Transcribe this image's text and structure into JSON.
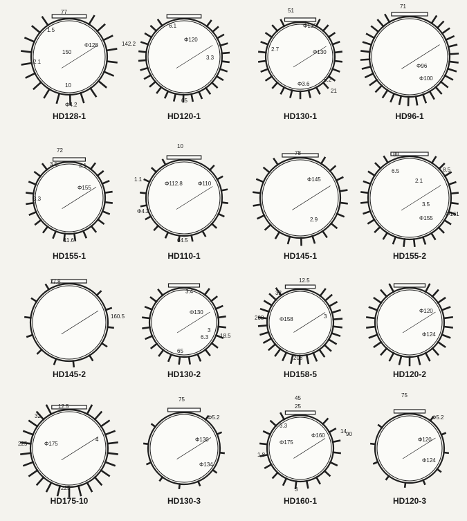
{
  "profiles": [
    {
      "name": "HD128-1",
      "dims": [
        "77",
        "1.5",
        "150",
        "Φ128",
        "142.2",
        "2.1",
        "10",
        "Φ4.2"
      ]
    },
    {
      "name": "HD120-1",
      "dims": [
        "6.1",
        "Φ120",
        "3.3",
        "65"
      ]
    },
    {
      "name": "HD130-1",
      "dims": [
        "51",
        "Φ135",
        "2.7",
        "Φ130",
        "Φ3.6",
        "6.2",
        "21"
      ]
    },
    {
      "name": "HD96-1",
      "dims": [
        "71",
        "Φ96",
        "Φ100"
      ]
    },
    {
      "name": "HD155-1",
      "dims": [
        "72",
        "3.5",
        "2.1",
        "Φ155",
        "3.3",
        "11.6"
      ]
    },
    {
      "name": "HD110-1",
      "dims": [
        "10",
        "1.1",
        "Φ112.8",
        "Φ110",
        "Φ4.2",
        "64.5"
      ]
    },
    {
      "name": "HD145-1",
      "dims": [
        "78",
        "Φ145",
        "2.9"
      ]
    },
    {
      "name": "HD155-2",
      "dims": [
        "88",
        "6.5",
        "8.5",
        "2.1",
        "3.5",
        "Φ155",
        "Φ161"
      ]
    },
    {
      "name": "HD145-2",
      "dims": [
        "77.8",
        "160.5"
      ]
    },
    {
      "name": "HD130-2",
      "dims": [
        "3.4",
        "Φ130",
        "6.3",
        "3",
        "18.5",
        "65"
      ]
    },
    {
      "name": "HD158-5",
      "dims": [
        "12.5",
        "32",
        "Φ158",
        "3",
        "208",
        "208"
      ]
    },
    {
      "name": "HD120-2",
      "dims": [
        "Φ120",
        "Φ124"
      ]
    },
    {
      "name": "HD175-10",
      "dims": [
        "12.5",
        "32",
        "Φ175",
        "4",
        "225",
        "225"
      ]
    },
    {
      "name": "HD130-3",
      "dims": [
        "75",
        "Φ5.2",
        "Φ130",
        "Φ134"
      ]
    },
    {
      "name": "HD160-1",
      "dims": [
        "45",
        "25",
        "3.3",
        "Φ175",
        "Φ160",
        "90",
        "14",
        "1.8",
        "3"
      ]
    },
    {
      "name": "HD120-3",
      "dims": [
        "75",
        "Φ5.2",
        "Φ120",
        "Φ124"
      ]
    }
  ]
}
